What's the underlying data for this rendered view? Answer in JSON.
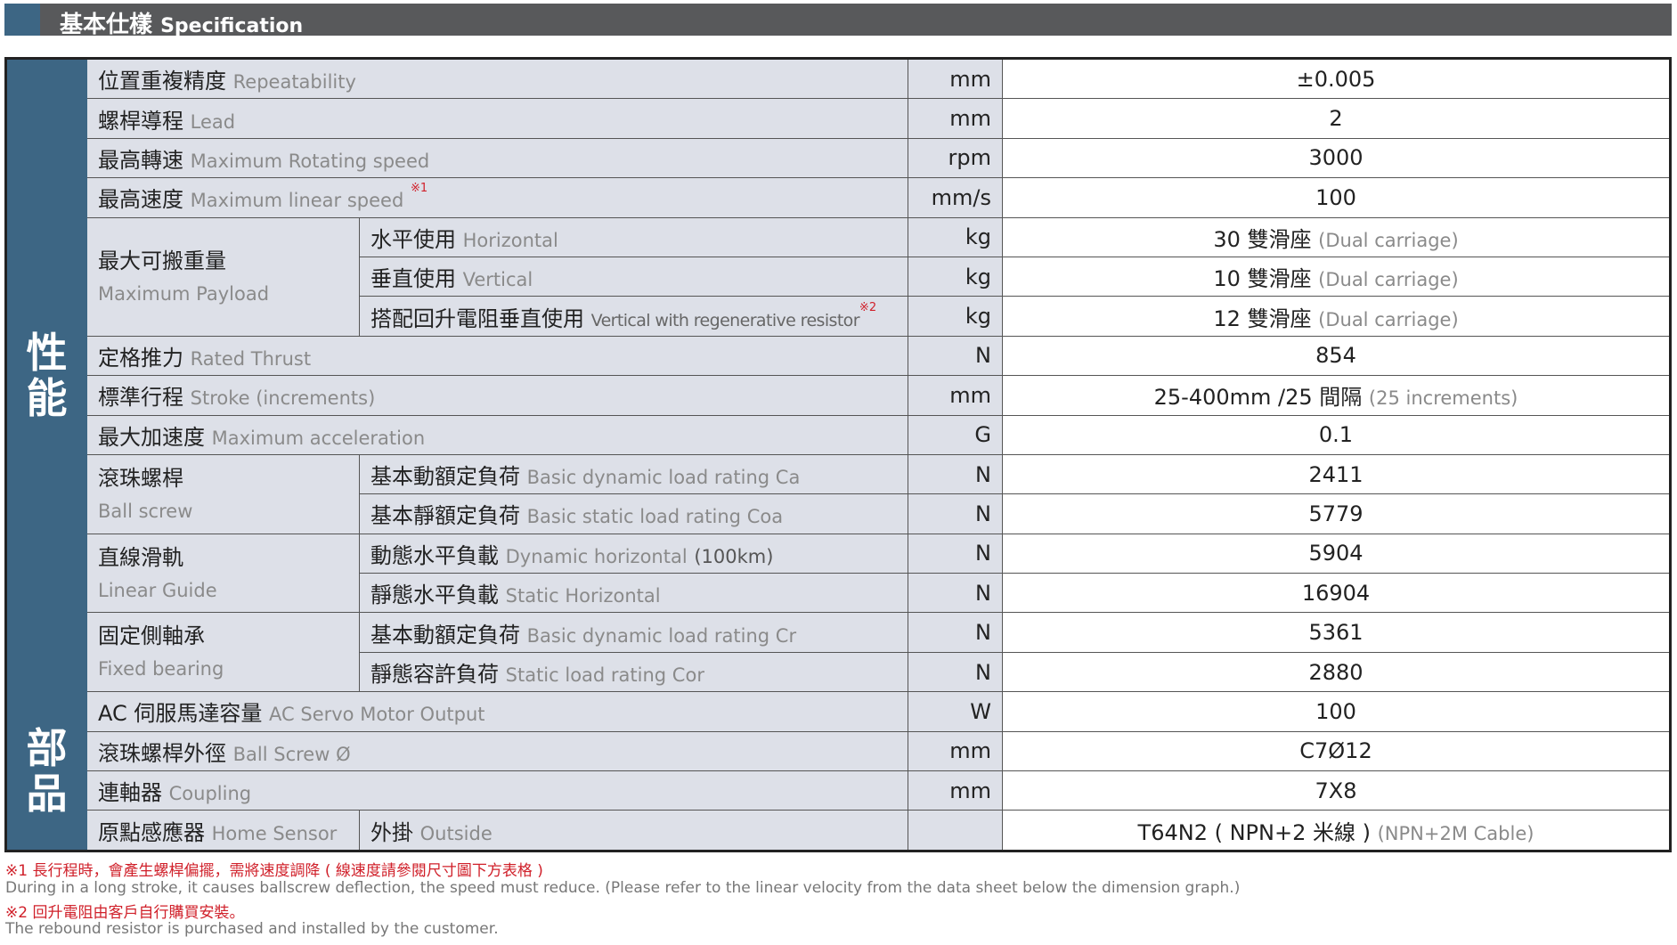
{
  "header": {
    "title_zh": "基本仕樣",
    "title_en": "Specification"
  },
  "categories": {
    "performance": "性\n能",
    "parts": "部\n品"
  },
  "rows": {
    "r1": {
      "zh": "位置重複精度",
      "en": "Repeatability",
      "unit": "mm",
      "value": "±0.005"
    },
    "r2": {
      "zh": "螺桿導程",
      "en": "Lead",
      "unit": "mm",
      "value": "2"
    },
    "r3": {
      "zh": "最高轉速",
      "en": "Maximum Rotating speed",
      "unit": "rpm",
      "value": "3000"
    },
    "r4": {
      "zh": "最高速度",
      "en": "Maximum linear speed",
      "note": "※1",
      "unit": "mm/s",
      "value": "100"
    },
    "payload": {
      "zh": "最大可搬重量",
      "en": "Maximum Payload",
      "s1": {
        "zh": "水平使用",
        "en": "Horizontal",
        "unit": "kg",
        "value": "30 雙滑座",
        "value_en": "(Dual carriage)"
      },
      "s2": {
        "zh": "垂直使用",
        "en": "Vertical",
        "unit": "kg",
        "value": "10 雙滑座",
        "value_en": "(Dual carriage)"
      },
      "s3": {
        "zh": "搭配回升電阻垂直使用",
        "en": "Vertical with regenerative resistor",
        "note": "※2",
        "unit": "kg",
        "value": "12 雙滑座",
        "value_en": "(Dual carriage)"
      }
    },
    "r5": {
      "zh": "定格推力",
      "en": "Rated Thrust",
      "unit": "N",
      "value": "854"
    },
    "r6": {
      "zh": "標準行程",
      "en": "Stroke (increments)",
      "unit": "mm",
      "value": "25-400mm /25 間隔",
      "value_en": "(25 increments)"
    },
    "r7": {
      "zh": "最大加速度",
      "en": "Maximum acceleration",
      "unit": "G",
      "value": "0.1"
    },
    "ballscrew": {
      "zh": "滾珠螺桿",
      "en": "Ball screw",
      "s1": {
        "zh": "基本動額定負荷",
        "en": "Basic dynamic load rating Ca",
        "unit": "N",
        "value": "2411"
      },
      "s2": {
        "zh": "基本靜額定負荷",
        "en": "Basic static load rating Coa",
        "unit": "N",
        "value": "5779"
      }
    },
    "guide": {
      "zh": "直線滑軌",
      "en": "Linear Guide",
      "s1": {
        "zh": "動態水平負載",
        "en": "Dynamic horizontal",
        "en2": "(100km)",
        "unit": "N",
        "value": "5904"
      },
      "s2": {
        "zh": "靜態水平負載",
        "en": "Static Horizontal",
        "unit": "N",
        "value": "16904"
      }
    },
    "bearing": {
      "zh": "固定側軸承",
      "en": "Fixed bearing",
      "s1": {
        "zh": "基本動額定負荷",
        "en": "Basic dynamic load rating Cr",
        "unit": "N",
        "value": "5361"
      },
      "s2": {
        "zh": "靜態容許負荷",
        "en": "Static load rating Cor",
        "unit": "N",
        "value": "2880"
      }
    },
    "p1": {
      "zh": "AC 伺服馬達容量",
      "en": "AC Servo Motor Output",
      "unit": "W",
      "value": "100"
    },
    "p2": {
      "zh": "滾珠螺桿外徑",
      "en": "Ball Screw Ø",
      "unit": "mm",
      "value": "C7Ø12"
    },
    "p3": {
      "zh": "連軸器",
      "en": "Coupling",
      "unit": "mm",
      "value": "7X8"
    },
    "p4": {
      "zh": "原點感應器",
      "en": "Home Sensor",
      "sub_zh": "外掛",
      "sub_en": "Outside",
      "unit": "",
      "value": "T64N2 ( NPN+2 米線 )",
      "value_en": "(NPN+2M Cable)"
    }
  },
  "footnotes": {
    "n1_zh": "※1 長行程時，會產生螺桿偏擺，需將速度調降 ( 線速度請參閱尺寸圖下方表格 )",
    "n1_en": "During in a long stroke, it causes ballscrew deflection, the speed must reduce. (Please refer to the linear velocity from the data sheet below the dimension graph.)",
    "n2_zh": "※2 回升電阻由客戶自行購買安裝。",
    "n2_en": "The rebound resistor is purchased and installed by the customer."
  },
  "colors": {
    "header_bg": "#58595b",
    "category_bg": "#3d6684",
    "cell_bg": "#dde0e8",
    "note_red": "#d0202a"
  }
}
